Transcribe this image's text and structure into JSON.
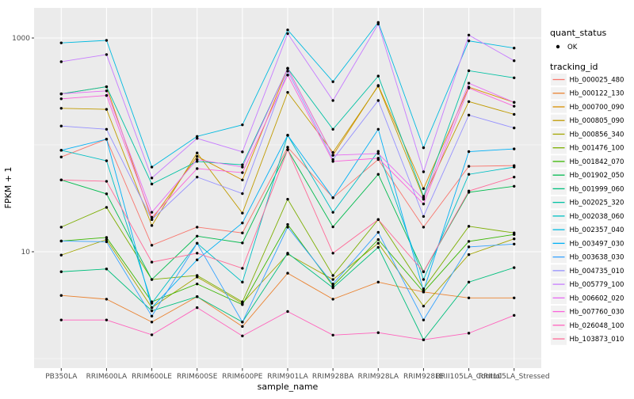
{
  "figure": {
    "kind": "ggplot-line-chart",
    "background": "#ffffff",
    "panel_color": "#ebebeb",
    "grid_color": "#ffffff",
    "axis_text_color": "#4d4d4d",
    "legend_key_color": "#f2f2f2"
  },
  "chart_data": {
    "type": "line",
    "title": "",
    "xlabel": "sample_name",
    "ylabel": "FPKM + 1",
    "y_scale": "log10",
    "y_axis_range": [
      1,
      2000
    ],
    "y_major_ticks": [
      1000,
      10
    ],
    "y_tick_labels": [
      "1000",
      "10"
    ],
    "y_minor_gridlines": [
      100,
      1
    ],
    "grid": true,
    "legend_position": "right",
    "quant_status_legend": {
      "title": "quant_status",
      "items": [
        "OK"
      ]
    },
    "tracking_legend_title": "tracking_id",
    "point_marker": {
      "shape": "circle",
      "color": "#000000"
    },
    "categories": [
      "PB350LA",
      "RRIM600LA",
      "RRIM600LE",
      "RRIM600SE",
      "RRIM600PE",
      "RRIM901LA",
      "RRIM928BA",
      "RRIM928LA",
      "RRIM928LE",
      "RRII105LA_Control",
      "RRII105LA_Stressed"
    ],
    "series": [
      {
        "name": "Hb_000025_480",
        "color": "#F8766D",
        "values": [
          77,
          113,
          11.5,
          17,
          15,
          95,
          32,
          73,
          17,
          63,
          64
        ]
      },
      {
        "name": "Hb_000122_130",
        "color": "#EA8331",
        "values": [
          3.9,
          3.6,
          2.2,
          3.8,
          2.0,
          6.3,
          3.6,
          5.2,
          4.2,
          3.7,
          3.7
        ]
      },
      {
        "name": "Hb_000700_090",
        "color": "#D89000",
        "values": [
          300,
          350,
          20,
          78,
          47,
          520,
          80,
          360,
          39,
          347,
          250
        ]
      },
      {
        "name": "Hb_000805_090",
        "color": "#C09B00",
        "values": [
          220,
          215,
          17.6,
          84,
          23,
          310,
          85,
          355,
          32,
          254,
          193
        ]
      },
      {
        "name": "Hb_000856_340",
        "color": "#A3A500",
        "values": [
          9.3,
          13,
          3.0,
          5.8,
          3.3,
          9.5,
          5.5,
          12,
          3.1,
          9.4,
          13.2
        ]
      },
      {
        "name": "Hb_001476_100",
        "color": "#7CAE00",
        "values": [
          17,
          26,
          5.5,
          6.0,
          3.4,
          31,
          6.0,
          20,
          4.5,
          17.3,
          15
        ]
      },
      {
        "name": "Hb_001842_070",
        "color": "#39B600",
        "values": [
          12.6,
          13.6,
          3.4,
          5.0,
          3.2,
          18,
          4.8,
          13,
          4.2,
          12.5,
          14.5
        ]
      },
      {
        "name": "Hb_001902_050",
        "color": "#00BB4E",
        "values": [
          47,
          34.8,
          5.5,
          14,
          12.1,
          90,
          17.1,
          53,
          6.5,
          36,
          41
        ]
      },
      {
        "name": "Hb_001999_060",
        "color": "#00BF7D",
        "values": [
          6.5,
          6.9,
          2.8,
          3.8,
          2.2,
          9.7,
          4.6,
          11,
          1.5,
          5.2,
          7.1
        ]
      },
      {
        "name": "Hb_002025_320",
        "color": "#00C1A3",
        "values": [
          300,
          350,
          43,
          70,
          65,
          520,
          140,
          440,
          33,
          494,
          424
        ]
      },
      {
        "name": "Hb_002038_060",
        "color": "#00BFC4",
        "values": [
          89,
          71,
          3.3,
          12,
          5.2,
          123,
          23.4,
          87,
          5.5,
          53,
          62
        ]
      },
      {
        "name": "Hb_002357_040",
        "color": "#00BAE0",
        "values": [
          900,
          950,
          62,
          120,
          154,
          1190,
          390,
          1400,
          94,
          940,
          805
        ]
      },
      {
        "name": "Hb_003497_030",
        "color": "#00B0F6",
        "values": [
          89,
          113,
          3.0,
          8.4,
          18.6,
          123,
          32,
          140,
          4.3,
          86.5,
          91.7
        ]
      },
      {
        "name": "Hb_003638_030",
        "color": "#35A2FF",
        "values": [
          12.6,
          12.4,
          2.5,
          12,
          2.2,
          17,
          5.0,
          15.2,
          2.3,
          11.1,
          11.8
        ]
      },
      {
        "name": "Hb_004735_010",
        "color": "#9590FF",
        "values": [
          150,
          140,
          20,
          50,
          35,
          490,
          73,
          260,
          21.4,
          190,
          144
        ]
      },
      {
        "name": "Hb_005779_100",
        "color": "#C77CFF",
        "values": [
          600,
          700,
          49,
          115,
          86,
          1100,
          260,
          1350,
          56,
          1065,
          613
        ]
      },
      {
        "name": "Hb_006602_020",
        "color": "#E76BF3",
        "values": [
          300,
          320,
          23.4,
          73,
          62,
          520,
          80,
          83,
          31,
          378,
          250
        ]
      },
      {
        "name": "Hb_007760_030",
        "color": "#FA62DB",
        "values": [
          270,
          290,
          21,
          60,
          55,
          450,
          70,
          75,
          28,
          340,
          230
        ]
      },
      {
        "name": "Hb_026048_100",
        "color": "#FF62BC",
        "values": [
          2.3,
          2.3,
          1.67,
          3.0,
          1.63,
          2.76,
          1.66,
          1.75,
          1.5,
          1.73,
          2.54
        ]
      },
      {
        "name": "Hb_103873_010",
        "color": "#FF6A98",
        "values": [
          47,
          45.6,
          8,
          9.7,
          7,
          90,
          9.7,
          20,
          6.5,
          37,
          50
        ]
      }
    ]
  }
}
